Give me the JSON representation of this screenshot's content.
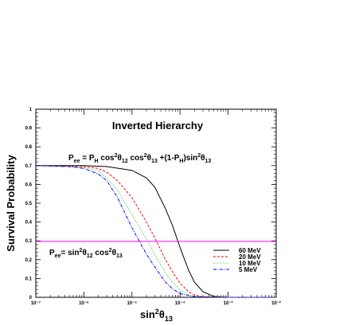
{
  "chart_data": {
    "type": "line",
    "title": "Inverted Hierarchy",
    "xlabel": "sin²θ₁₃",
    "ylabel": "Survival Probability",
    "xscale": "log",
    "xlim": [
      1e-07,
      0.01
    ],
    "ylim": [
      0,
      1
    ],
    "x_ticks": [
      "10⁻⁷",
      "10⁻⁶",
      "10⁻⁵",
      "10⁻⁴",
      "10⁻³",
      "10⁻²"
    ],
    "y_ticks": [
      "0",
      "0.1",
      "0.2",
      "0.3",
      "0.4",
      "0.5",
      "0.6",
      "0.7",
      "0.8",
      "0.9",
      "1"
    ],
    "legend_position": "bottom-right",
    "annotations": {
      "formula_top": "P_ee = P_H cos²θ₁₂ cos²θ₁₃ +(1-P_H)sin²θ₁₃",
      "formula_bottom": "P_ee = sin²θ₁₂ cos²θ₁₃"
    },
    "series": [
      {
        "name": "60 MeV",
        "color": "#000000",
        "dash": "solid",
        "x": [
          1e-07,
          1e-06,
          3e-06,
          1e-05,
          2e-05,
          3e-05,
          5e-05,
          7e-05,
          0.0001,
          0.00015,
          0.0002,
          0.0003,
          0.0005,
          0.001,
          0.01
        ],
        "y": [
          0.7,
          0.7,
          0.695,
          0.675,
          0.635,
          0.585,
          0.47,
          0.38,
          0.265,
          0.145,
          0.08,
          0.03,
          0.005,
          0.0,
          0.0
        ]
      },
      {
        "name": "20 MeV",
        "color": "#ff0000",
        "dash": "dashed",
        "x": [
          1e-07,
          1e-06,
          2e-06,
          3e-06,
          5e-06,
          1e-05,
          2e-05,
          3e-05,
          5e-05,
          7e-05,
          0.0001,
          0.00015,
          0.0002,
          0.0003,
          0.001,
          0.01
        ],
        "y": [
          0.7,
          0.695,
          0.685,
          0.665,
          0.62,
          0.53,
          0.4,
          0.315,
          0.2,
          0.135,
          0.075,
          0.03,
          0.012,
          0.003,
          0.0,
          0.0
        ]
      },
      {
        "name": "10 MeV",
        "color": "#33cc33",
        "dash": "dotted",
        "x": [
          1e-07,
          1e-06,
          2e-06,
          3e-06,
          5e-06,
          1e-05,
          2e-05,
          3e-05,
          5e-05,
          7e-05,
          0.0001,
          0.00015,
          0.0002,
          0.001,
          0.01
        ],
        "y": [
          0.7,
          0.69,
          0.67,
          0.635,
          0.57,
          0.44,
          0.31,
          0.225,
          0.13,
          0.08,
          0.04,
          0.015,
          0.005,
          0.0,
          0.0
        ]
      },
      {
        "name": "5 MeV",
        "color": "#0000ff",
        "dash": "dashdot",
        "x": [
          1e-07,
          5e-07,
          1e-06,
          2e-06,
          3e-06,
          5e-06,
          1e-05,
          2e-05,
          3e-05,
          5e-05,
          7e-05,
          0.0001,
          0.0002,
          0.001,
          0.01
        ],
        "y": [
          0.7,
          0.695,
          0.685,
          0.655,
          0.62,
          0.53,
          0.37,
          0.23,
          0.16,
          0.08,
          0.045,
          0.02,
          0.003,
          0.0,
          0.0
        ]
      },
      {
        "name": "",
        "color": "#ff00ff",
        "dash": "solid",
        "x": [
          1e-07,
          0.01
        ],
        "y": [
          0.297,
          0.297
        ]
      }
    ]
  }
}
